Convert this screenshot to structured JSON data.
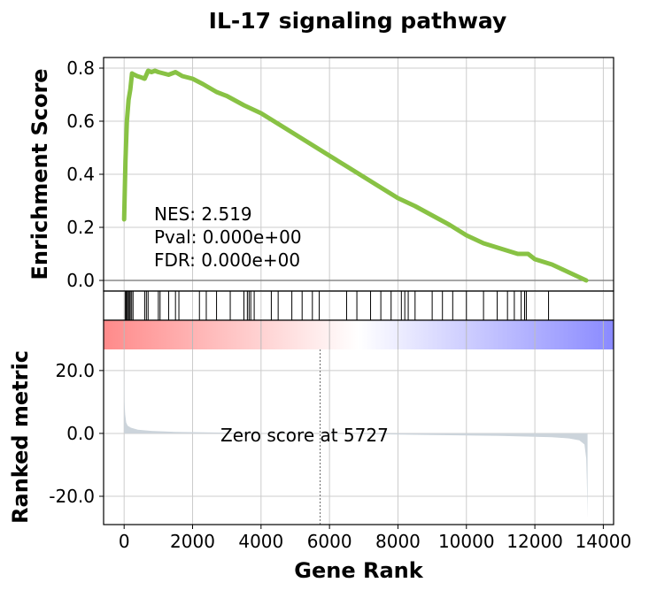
{
  "chart_data": {
    "type": "line",
    "title": "IL-17 signaling pathway",
    "top_panel": {
      "ylabel": "Enrichment Score",
      "ylim": [
        -0.04,
        0.84
      ],
      "yticks": [
        0.0,
        0.2,
        0.4,
        0.6,
        0.8
      ],
      "ytick_labels": [
        "0.0",
        "0.2",
        "0.4",
        "0.6",
        "0.8"
      ],
      "line_color": "#88c244",
      "grid": true,
      "running_es": {
        "x": [
          0,
          40,
          80,
          130,
          180,
          230,
          300,
          380,
          500,
          600,
          700,
          800,
          900,
          1000,
          1150,
          1300,
          1500,
          1700,
          2000,
          2300,
          2700,
          3000,
          3500,
          4000,
          4500,
          5000,
          5500,
          6000,
          6500,
          7000,
          7500,
          8000,
          8500,
          9000,
          9500,
          10000,
          10500,
          11000,
          11500,
          11800,
          12000,
          12500,
          13000,
          13500
        ],
        "y": [
          0.23,
          0.45,
          0.6,
          0.68,
          0.72,
          0.78,
          0.775,
          0.77,
          0.765,
          0.76,
          0.79,
          0.785,
          0.79,
          0.785,
          0.78,
          0.775,
          0.785,
          0.77,
          0.76,
          0.74,
          0.71,
          0.695,
          0.66,
          0.63,
          0.59,
          0.55,
          0.51,
          0.47,
          0.43,
          0.39,
          0.35,
          0.31,
          0.28,
          0.245,
          0.21,
          0.17,
          0.14,
          0.12,
          0.1,
          0.1,
          0.08,
          0.06,
          0.03,
          0.0
        ]
      }
    },
    "annotations": {
      "nes": "NES: 2.519",
      "pval": "Pval: 0.000e+00",
      "fdr": "FDR: 0.000e+00"
    },
    "hits_panel": {
      "hit_positions": [
        30,
        60,
        90,
        120,
        150,
        180,
        220,
        260,
        600,
        650,
        700,
        1000,
        1050,
        1300,
        1500,
        1600,
        2200,
        2400,
        2700,
        3100,
        3500,
        3600,
        3650,
        3700,
        3800,
        4300,
        4500,
        4900,
        5200,
        5500,
        5700,
        6500,
        6800,
        7200,
        7500,
        7800,
        8100,
        8200,
        8300,
        8500,
        9000,
        9300,
        9600,
        10000,
        10500,
        10900,
        11200,
        11400,
        11600,
        11700,
        11750,
        12400
      ]
    },
    "gradient_colors": [
      "#ff8a8a",
      "#ffffff",
      "#8a8aff"
    ],
    "bottom_panel": {
      "ylabel": "Ranked metric",
      "xlabel": "Gene Rank",
      "ylim": [
        -29,
        36
      ],
      "yticks": [
        20.0,
        0.0,
        -20.0
      ],
      "ytick_labels": [
        "20.0",
        "0.0",
        "-20.0"
      ],
      "xlim": [
        -600,
        14300
      ],
      "xticks": [
        0,
        2000,
        4000,
        6000,
        8000,
        10000,
        12000,
        14000
      ],
      "xtick_labels": [
        "0",
        "2000",
        "4000",
        "6000",
        "8000",
        "10000",
        "12000",
        "14000"
      ],
      "fill_color": "#ccd4db",
      "zero_cross": 5727,
      "zero_label": "Zero score at 5727",
      "ranked_metric": {
        "x": [
          0,
          10,
          30,
          60,
          100,
          200,
          400,
          800,
          1500,
          3000,
          5000,
          5727,
          7000,
          9000,
          11000,
          12500,
          13000,
          13300,
          13450,
          13500,
          13520,
          13540
        ],
        "y": [
          25,
          10,
          6,
          3.5,
          2.5,
          1.8,
          1.2,
          0.8,
          0.5,
          0.2,
          0.05,
          0.0,
          -0.2,
          -0.5,
          -0.8,
          -1.2,
          -1.6,
          -2.2,
          -3.5,
          -8,
          -15,
          -27
        ]
      }
    }
  }
}
